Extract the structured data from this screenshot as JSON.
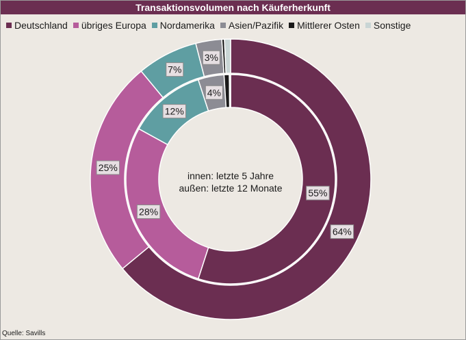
{
  "chart_data": {
    "type": "donut",
    "title": "Transaktionsvolumen nach Käuferherkunft",
    "categories": [
      "Deutschland",
      "übriges Europa",
      "Nordamerika",
      "Asien/Pazifik",
      "Mittlerer Osten",
      "Sonstige"
    ],
    "colors": [
      "#6b2e51",
      "#b65c9b",
      "#5f9ea2",
      "#8c8c94",
      "#1a1a1a",
      "#c9d5d5"
    ],
    "series": [
      {
        "name": "letzte 12 Monate",
        "ring": "outer",
        "values": [
          64,
          25,
          7,
          3,
          0.3,
          0.7
        ],
        "labels": [
          "64%",
          "25%",
          "7%",
          "3%",
          "",
          ""
        ]
      },
      {
        "name": "letzte 5 Jahre",
        "ring": "inner",
        "values": [
          55,
          28,
          12,
          4,
          0.8,
          0.2
        ],
        "labels": [
          "55%",
          "28%",
          "12%",
          "4%",
          "",
          ""
        ]
      }
    ],
    "center_text": [
      "innen:  letzte  5 Jahre",
      "außen:  letzte  12 Monate"
    ],
    "legend_position": "top",
    "source": "Quelle: Savills"
  }
}
